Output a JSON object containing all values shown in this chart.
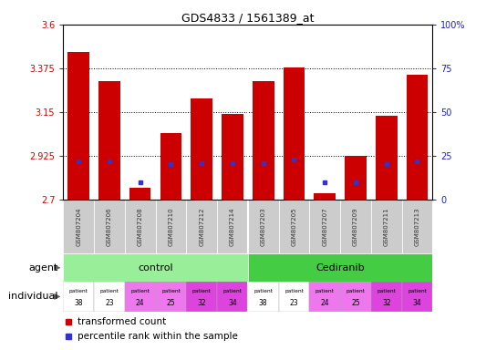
{
  "title": "GDS4833 / 1561389_at",
  "samples": [
    "GSM807204",
    "GSM807206",
    "GSM807208",
    "GSM807210",
    "GSM807212",
    "GSM807214",
    "GSM807203",
    "GSM807205",
    "GSM807207",
    "GSM807209",
    "GSM807211",
    "GSM807213"
  ],
  "bar_values": [
    3.46,
    3.31,
    2.76,
    3.04,
    3.22,
    3.14,
    3.31,
    3.38,
    2.73,
    2.925,
    3.13,
    3.34
  ],
  "percentile_values": [
    22,
    22,
    10,
    20,
    21,
    21,
    21,
    23,
    10,
    10,
    20,
    22
  ],
  "bar_color": "#cc0000",
  "percentile_color": "#3333cc",
  "ymin": 2.7,
  "ymax": 3.6,
  "yticks": [
    2.7,
    2.925,
    3.15,
    3.375,
    3.6
  ],
  "ytick_labels": [
    "2.7",
    "2.925",
    "3.15",
    "3.375",
    "3.6"
  ],
  "right_yticks": [
    0,
    25,
    50,
    75,
    100
  ],
  "right_ytick_labels": [
    "0",
    "25",
    "50",
    "75",
    "100%"
  ],
  "n_control": 6,
  "n_cediranib": 6,
  "patients": [
    38,
    23,
    24,
    25,
    32,
    34,
    38,
    23,
    24,
    25,
    32,
    34
  ],
  "patient_colors": [
    "#ffffff",
    "#ffffff",
    "#ee77ee",
    "#ee77ee",
    "#dd44dd",
    "#dd44dd",
    "#ffffff",
    "#ffffff",
    "#ee77ee",
    "#ee77ee",
    "#dd44dd",
    "#dd44dd"
  ],
  "control_color": "#99ee99",
  "cediranib_color": "#44cc44",
  "xtick_bg": "#cccccc",
  "bar_width": 0.7,
  "left_axis_color": "#cc0000",
  "right_axis_color": "#2222bb"
}
